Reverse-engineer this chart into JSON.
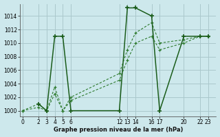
{
  "bg_color": "#cde8ec",
  "grid_color": "#aac8cc",
  "line_color_solid": "#1a5c1a",
  "line_color_dash1": "#2d7a2d",
  "line_color_dash2": "#2d7a2d",
  "title": "Graphe pression niveau de la mer (hPa)",
  "yticks": [
    1000,
    1002,
    1004,
    1006,
    1008,
    1010,
    1012,
    1014
  ],
  "xticks": [
    0,
    2,
    3,
    4,
    5,
    6,
    12,
    13,
    14,
    16,
    17,
    20,
    22,
    23
  ],
  "xlim": [
    -0.3,
    24
  ],
  "ylim": [
    999.2,
    1015.8
  ],
  "solid_x": [
    2,
    3,
    4,
    5,
    6,
    12,
    13,
    14,
    16,
    17,
    20,
    22,
    23
  ],
  "solid_y": [
    1001,
    1000,
    1011,
    1011,
    1000,
    1000,
    1015.2,
    1015.2,
    1014,
    1000,
    1011,
    1011,
    1011
  ],
  "dash1_x": [
    0,
    2,
    3,
    4,
    5,
    6,
    12,
    13,
    14,
    16,
    17,
    20,
    22,
    23
  ],
  "dash1_y": [
    1000,
    1001,
    1000,
    1003.5,
    1000,
    1002,
    1005.5,
    1009,
    1011.5,
    1013,
    1010,
    1010.5,
    1011,
    1011
  ],
  "dash2_x": [
    0,
    2,
    3,
    4,
    5,
    6,
    12,
    13,
    14,
    16,
    17,
    20,
    22,
    23
  ],
  "dash2_y": [
    1000,
    1000.5,
    1000,
    1002.5,
    1000,
    1001.5,
    1004.5,
    1007.5,
    1010,
    1011,
    1009,
    1010,
    1011,
    1011
  ]
}
